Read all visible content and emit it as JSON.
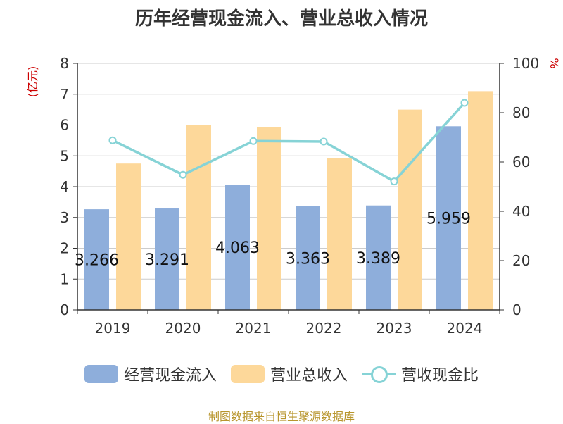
{
  "chart_data": {
    "type": "bar",
    "title": "历年经营现金流入、营业总收入情况",
    "categories": [
      "2019",
      "2020",
      "2021",
      "2022",
      "2023",
      "2024"
    ],
    "series": [
      {
        "name": "经营现金流入",
        "type": "bar",
        "axis": "left",
        "color": "#8eaedb",
        "values": [
          3.266,
          3.291,
          4.063,
          3.363,
          3.389,
          5.959
        ],
        "data_labels": [
          "3.266",
          "3.291",
          "4.063",
          "3.363",
          "3.389",
          "5.959"
        ]
      },
      {
        "name": "营业总收入",
        "type": "bar",
        "axis": "left",
        "color": "#fdd89a",
        "values": [
          4.75,
          6.0,
          5.93,
          4.92,
          6.5,
          7.1
        ]
      },
      {
        "name": "营收现金比",
        "type": "line",
        "axis": "right",
        "color": "#86d3d6",
        "values": [
          68.8,
          54.8,
          68.5,
          68.3,
          52.1,
          84.0
        ]
      }
    ],
    "left_axis": {
      "label": "(亿元)",
      "ylim": [
        0,
        8
      ],
      "ticks": [
        "0",
        "1",
        "2",
        "3",
        "4",
        "5",
        "6",
        "7",
        "8"
      ]
    },
    "right_axis": {
      "label": "%",
      "ylim": [
        0,
        100
      ],
      "ticks": [
        "0",
        "20",
        "40",
        "60",
        "80",
        "100"
      ]
    },
    "grid": true,
    "legend_position": "bottom"
  },
  "footer": "制图数据来自恒生聚源数据库"
}
